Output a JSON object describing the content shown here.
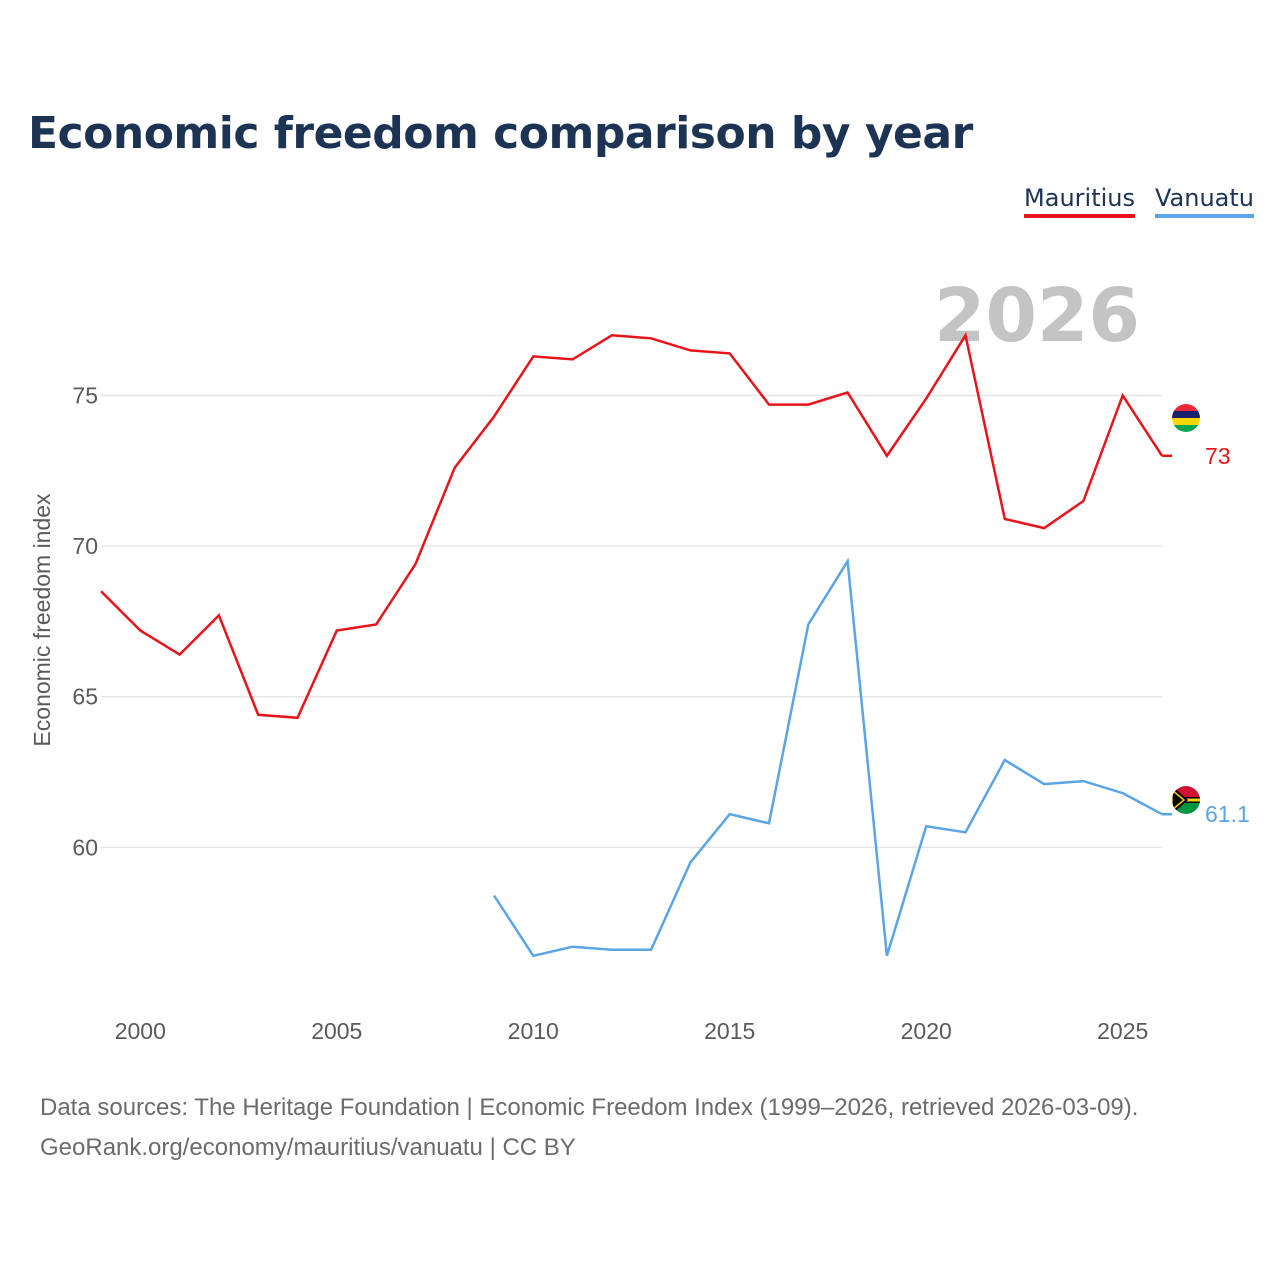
{
  "chart_data": {
    "type": "line",
    "title": "Economic freedom comparison by year",
    "ylabel": "Economic freedom index",
    "xlabel": "",
    "year_overlay": "2026",
    "xlim": [
      1999,
      2026
    ],
    "ylim": [
      54.6,
      79.5
    ],
    "x_ticks": [
      2000,
      2005,
      2010,
      2015,
      2020,
      2025
    ],
    "y_ticks": [
      60,
      65,
      70,
      75
    ],
    "grid": true,
    "legend_position": "top-right",
    "series": [
      {
        "name": "Mauritius",
        "color": "#e8141c",
        "end_label": "73",
        "x": [
          1999,
          2000,
          2001,
          2002,
          2003,
          2004,
          2005,
          2006,
          2007,
          2008,
          2009,
          2010,
          2011,
          2012,
          2013,
          2014,
          2015,
          2016,
          2017,
          2018,
          2019,
          2020,
          2021,
          2022,
          2023,
          2024,
          2025,
          2026
        ],
        "values": [
          68.5,
          67.2,
          66.4,
          67.7,
          64.4,
          64.3,
          67.2,
          67.4,
          69.4,
          72.6,
          74.3,
          76.3,
          76.2,
          77.0,
          76.9,
          76.5,
          76.4,
          74.7,
          74.7,
          75.1,
          73.0,
          74.9,
          77.0,
          70.9,
          70.6,
          71.5,
          75.0,
          73.0
        ]
      },
      {
        "name": "Vanuatu",
        "color": "#5ba4e6",
        "end_label": "61.1",
        "x": [
          2009,
          2010,
          2011,
          2012,
          2013,
          2014,
          2015,
          2016,
          2017,
          2018,
          2019,
          2020,
          2021,
          2022,
          2023,
          2024,
          2025,
          2026
        ],
        "values": [
          58.4,
          56.4,
          56.7,
          56.6,
          56.6,
          59.5,
          61.1,
          60.8,
          67.4,
          69.5,
          56.4,
          60.7,
          60.5,
          62.9,
          62.1,
          62.2,
          61.8,
          61.1
        ]
      }
    ]
  },
  "source": {
    "line1": "Data sources: The Heritage Foundation | Economic Freedom Index (1999–2026, retrieved 2026-03-09).",
    "line2": "GeoRank.org/economy/mauritius/vanuatu | CC BY"
  }
}
